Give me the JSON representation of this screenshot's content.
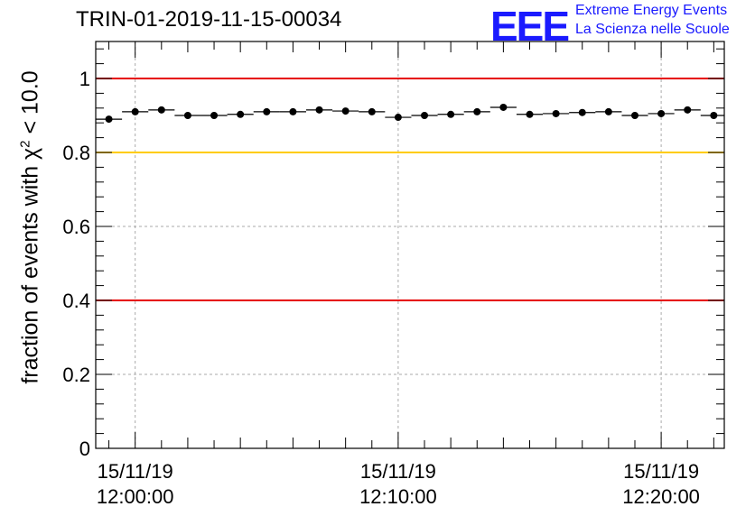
{
  "title": "TRIN-01-2019-11-15-00034",
  "logo": {
    "letters": "EEE",
    "line1": "Extreme Energy Events",
    "line2": "La Scienza nelle Scuole"
  },
  "colors": {
    "red_line": "#e60000",
    "yellow_line": "#ffcc00",
    "logo": "#1a1aff",
    "grid": "#aaaaaa",
    "marker": "#000000"
  },
  "chart_data": {
    "type": "scatter",
    "title": "TRIN-01-2019-11-15-00034",
    "ylabel_prefix": "fraction of events with ",
    "ylabel_chi": "χ",
    "ylabel_sup": "2",
    "ylabel_suffix": " < 10.0",
    "xlabel": "",
    "ylim": [
      0,
      1.1
    ],
    "xlim_minutes": [
      -1.5,
      22.4
    ],
    "grid": true,
    "y_ticks": [
      {
        "value": 0,
        "label": "0"
      },
      {
        "value": 0.2,
        "label": "0.2"
      },
      {
        "value": 0.4,
        "label": "0.4"
      },
      {
        "value": 0.6,
        "label": "0.6"
      },
      {
        "value": 0.8,
        "label": "0.8"
      },
      {
        "value": 1,
        "label": "1"
      }
    ],
    "x_major_ticks": [
      {
        "minutes": 0,
        "date": "15/11/19",
        "time": "12:00:00"
      },
      {
        "minutes": 10,
        "date": "15/11/19",
        "time": "12:10:00"
      },
      {
        "minutes": 20,
        "date": "15/11/19",
        "time": "12:20:00"
      }
    ],
    "reference_lines": [
      {
        "y": 1.0,
        "color": "#e60000"
      },
      {
        "y": 0.8,
        "color": "#ffcc00"
      },
      {
        "y": 0.4,
        "color": "#e60000"
      }
    ],
    "bin_width_minutes": 1,
    "x_minutes": [
      -1,
      0,
      1,
      2,
      3,
      4,
      5,
      6,
      7,
      8,
      9,
      10,
      11,
      12,
      13,
      14,
      15,
      16,
      17,
      18,
      19,
      20,
      21,
      22
    ],
    "values": [
      0.89,
      0.91,
      0.915,
      0.9,
      0.9,
      0.903,
      0.91,
      0.91,
      0.915,
      0.912,
      0.91,
      0.895,
      0.9,
      0.903,
      0.91,
      0.922,
      0.903,
      0.905,
      0.908,
      0.91,
      0.9,
      0.905,
      0.915,
      0.9
    ]
  }
}
